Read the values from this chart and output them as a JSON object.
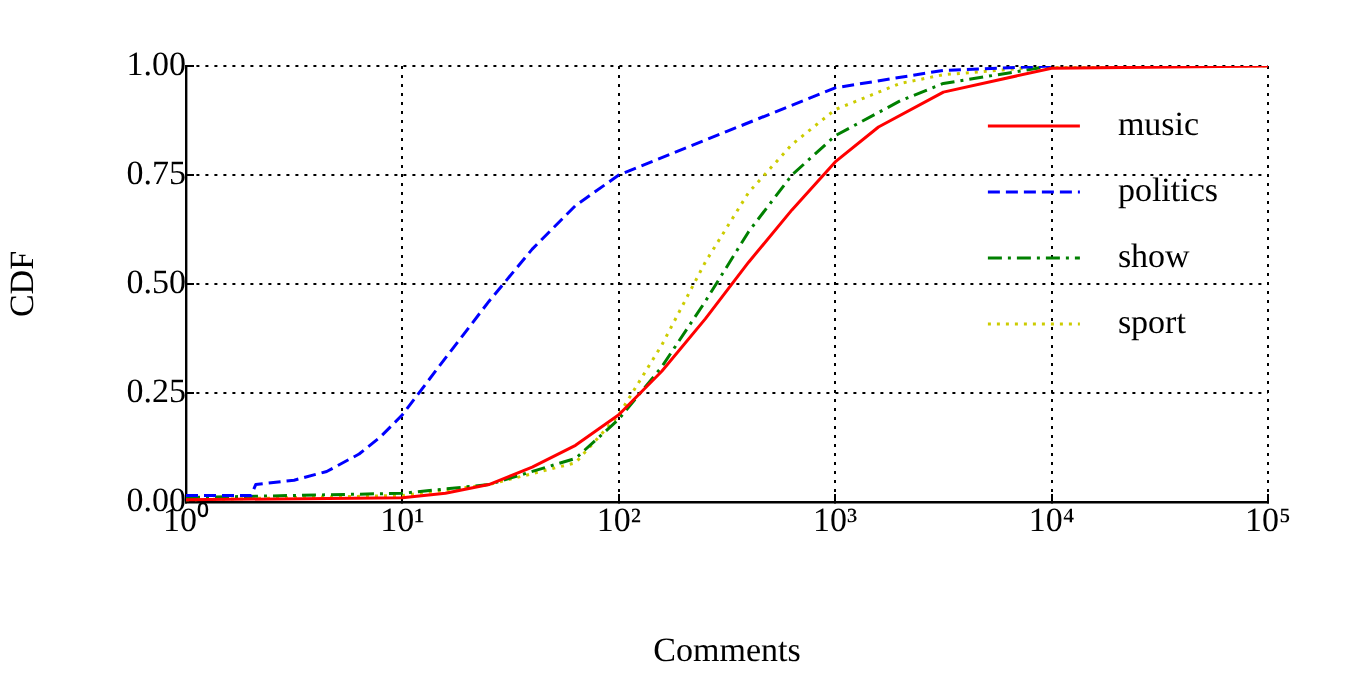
{
  "chart_data": {
    "type": "line",
    "xlabel": "Comments",
    "ylabel": "CDF",
    "log": "x",
    "xlim": [
      1,
      100000
    ],
    "ylim": [
      0,
      1
    ],
    "xticks": [
      {
        "value": 1,
        "label": "10⁰"
      },
      {
        "value": 10,
        "label": "10¹"
      },
      {
        "value": 100,
        "label": "10²"
      },
      {
        "value": 1000,
        "label": "10³"
      },
      {
        "value": 10000,
        "label": "10⁴"
      },
      {
        "value": 100000,
        "label": "10⁵"
      }
    ],
    "yticks": [
      {
        "value": 0,
        "label": "0.00"
      },
      {
        "value": 0.25,
        "label": "0.25"
      },
      {
        "value": 0.5,
        "label": "0.50"
      },
      {
        "value": 0.75,
        "label": "0.75"
      },
      {
        "value": 1,
        "label": "1.00"
      }
    ],
    "grid": true,
    "legend": "top right",
    "marker": "none",
    "series": [
      {
        "name": "music",
        "color": "#ff0000",
        "line_style": "solid",
        "x": [
          1,
          10,
          15.8,
          25.1,
          39.8,
          63.1,
          100,
          158,
          251,
          398,
          631,
          1000,
          1585,
          3162,
          10000,
          100000
        ],
        "values": [
          0.005,
          0.01,
          0.02,
          0.04,
          0.08,
          0.13,
          0.2,
          0.3,
          0.42,
          0.55,
          0.67,
          0.78,
          0.86,
          0.94,
          0.995,
          1
        ]
      },
      {
        "name": "politics",
        "color": "#0000ff",
        "line_style": "dashed",
        "x": [
          1,
          2,
          2.1,
          3.16,
          4.47,
          6.31,
          7.94,
          10,
          15.8,
          25.1,
          39.8,
          63.1,
          100,
          316,
          1000,
          3162,
          10000
        ],
        "values": [
          0.015,
          0.015,
          0.04,
          0.05,
          0.07,
          0.11,
          0.15,
          0.2,
          0.33,
          0.46,
          0.58,
          0.68,
          0.75,
          0.85,
          0.95,
          0.99,
          1
        ]
      },
      {
        "name": "show",
        "color": "#008000",
        "line_style": "dashdot",
        "x": [
          1,
          10,
          25.1,
          63.1,
          100,
          158,
          251,
          398,
          631,
          1000,
          1995,
          3162,
          10000
        ],
        "values": [
          0.01,
          0.02,
          0.04,
          0.1,
          0.19,
          0.31,
          0.46,
          0.62,
          0.75,
          0.84,
          0.92,
          0.96,
          1
        ]
      },
      {
        "name": "sport",
        "color": "#cccc00",
        "line_style": "dotted",
        "x": [
          1,
          10,
          25.1,
          63.1,
          100,
          158,
          251,
          398,
          631,
          1000,
          1995,
          3162,
          10000,
          100000
        ],
        "values": [
          0.005,
          0.015,
          0.04,
          0.09,
          0.2,
          0.36,
          0.55,
          0.71,
          0.82,
          0.9,
          0.96,
          0.98,
          1,
          1
        ]
      }
    ]
  }
}
